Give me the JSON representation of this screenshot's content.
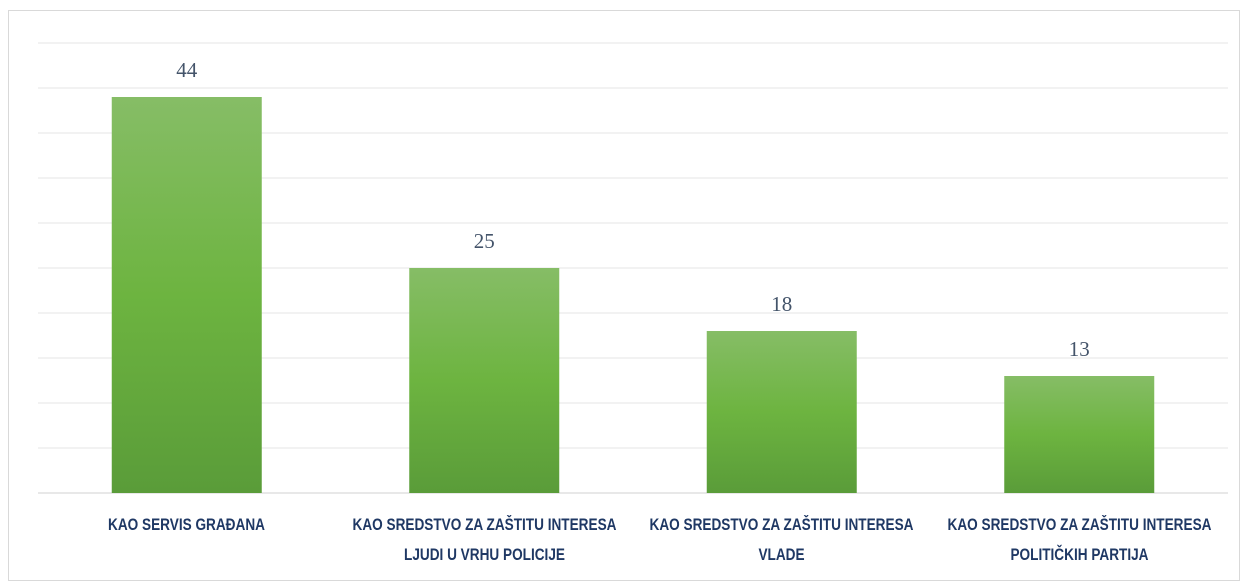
{
  "chart_data": {
    "type": "bar",
    "categories": [
      "KAO SERVIS GRAĐANA",
      "KAO SREDSTVO ZA ZAŠTITU INTERESA LJUDI U VRHU POLICIJE",
      "KAO SREDSTVO ZA ZAŠTITU INTERESA VLADE",
      "KAO SREDSTVO ZA ZAŠTITU INTERESA POLITIČKIH PARTIJA"
    ],
    "values": [
      44,
      25,
      18,
      13
    ],
    "color": "#6fb043",
    "ylim": [
      0,
      50
    ],
    "yticks": [
      0,
      5,
      10,
      15,
      20,
      25,
      30,
      35,
      40,
      45,
      50
    ],
    "grid": true
  }
}
